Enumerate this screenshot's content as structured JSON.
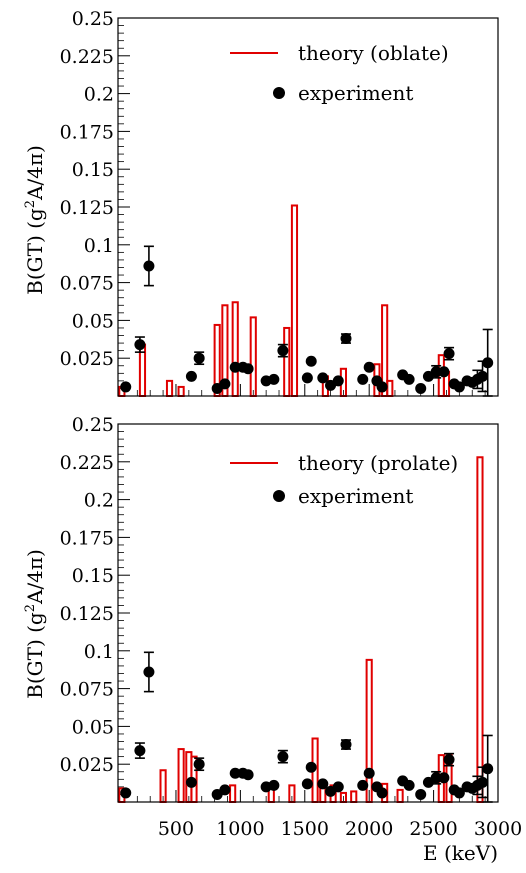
{
  "chart_data": [
    {
      "type": "bar",
      "xlabel": "",
      "ylabel": "B(GT) (g²A/4π)",
      "ylabel_main": "B(GT) (g",
      "ylabel_sup": "2",
      "ylabel_tail": "A/4π)",
      "xlim": [
        50,
        3000
      ],
      "ylim": [
        0,
        0.25
      ],
      "yticks": [
        "0.025",
        "0.05",
        "0.075",
        "0.1",
        "0.125",
        "0.15",
        "0.175",
        "0.2",
        "0.225",
        "0.25"
      ],
      "legend": {
        "position": "top-right",
        "entries": [
          "theory (oblate)",
          "experiment"
        ]
      },
      "colors": {
        "theory": "#e00000",
        "experiment": "#000000"
      },
      "series": [
        {
          "name": "theory (oblate)",
          "bin_width": 40,
          "x": [
            60,
            220,
            430,
            520,
            800,
            860,
            940,
            1080,
            1340,
            1400,
            1640,
            1780,
            2040,
            2100,
            2140,
            2540,
            2580
          ],
          "values": [
            0.006,
            0.034,
            0.01,
            0.006,
            0.047,
            0.06,
            0.062,
            0.052,
            0.045,
            0.126,
            0.013,
            0.018,
            0.021,
            0.06,
            0.01,
            0.027,
            0.016
          ]
        },
        {
          "name": "experiment",
          "x": [
            110,
            220,
            290,
            620,
            680,
            820,
            880,
            960,
            1020,
            1060,
            1200,
            1260,
            1330,
            1520,
            1550,
            1640,
            1700,
            1760,
            1820,
            1950,
            2000,
            2060,
            2100,
            2260,
            2310,
            2400,
            2460,
            2520,
            2580,
            2620,
            2660,
            2700,
            2760,
            2800,
            2840,
            2880,
            2920
          ],
          "values": [
            0.006,
            0.034,
            0.086,
            0.013,
            0.025,
            0.005,
            0.008,
            0.019,
            0.019,
            0.018,
            0.01,
            0.011,
            0.03,
            0.012,
            0.023,
            0.012,
            0.007,
            0.01,
            0.038,
            0.011,
            0.019,
            0.01,
            0.006,
            0.014,
            0.011,
            0.005,
            0.013,
            0.016,
            0.016,
            0.028,
            0.008,
            0.006,
            0.01,
            0.009,
            0.011,
            0.013,
            0.022
          ],
          "errors": [
            0,
            0.005,
            0.013,
            0,
            0.004,
            0,
            0,
            0,
            0,
            0,
            0,
            0,
            0.004,
            0,
            0,
            0,
            0,
            0,
            0.003,
            0,
            0,
            0,
            0,
            0,
            0,
            0,
            0,
            0.004,
            0,
            0.004,
            0,
            0,
            0,
            0,
            0.006,
            0.01,
            0.022
          ]
        }
      ]
    },
    {
      "type": "bar",
      "xlabel": "E (keV)",
      "ylabel": "B(GT) (g²A/4π)",
      "ylabel_main": "B(GT) (g",
      "ylabel_sup": "2",
      "ylabel_tail": "A/4π)",
      "xlim": [
        50,
        3000
      ],
      "ylim": [
        0,
        0.25
      ],
      "xticks": [
        "500",
        "1000",
        "1500",
        "2000",
        "2500",
        "3000"
      ],
      "xtick_values": [
        500,
        1000,
        1500,
        2000,
        2500,
        3000
      ],
      "yticks": [
        "0.025",
        "0.05",
        "0.075",
        "0.1",
        "0.125",
        "0.15",
        "0.175",
        "0.2",
        "0.225",
        "0.25"
      ],
      "legend": {
        "position": "top-right",
        "entries": [
          "theory (prolate)",
          "experiment"
        ]
      },
      "colors": {
        "theory": "#e00000",
        "experiment": "#000000"
      },
      "series": [
        {
          "name": "theory (prolate)",
          "bin_width": 40,
          "x": [
            60,
            380,
            520,
            580,
            620,
            920,
            1220,
            1380,
            1560,
            1620,
            1700,
            1780,
            1860,
            1980,
            2100,
            2220,
            2540,
            2600,
            2840
          ],
          "values": [
            0.009,
            0.021,
            0.035,
            0.033,
            0.03,
            0.011,
            0.01,
            0.011,
            0.042,
            0.013,
            0.011,
            0.006,
            0.007,
            0.094,
            0.012,
            0.008,
            0.031,
            0.031,
            0.228
          ]
        },
        {
          "name": "experiment",
          "x": [
            110,
            220,
            290,
            620,
            680,
            820,
            880,
            960,
            1020,
            1060,
            1200,
            1260,
            1330,
            1520,
            1550,
            1640,
            1700,
            1760,
            1820,
            1950,
            2000,
            2060,
            2100,
            2260,
            2310,
            2400,
            2460,
            2520,
            2580,
            2620,
            2660,
            2700,
            2760,
            2800,
            2840,
            2880,
            2920
          ],
          "values": [
            0.006,
            0.034,
            0.086,
            0.013,
            0.025,
            0.005,
            0.008,
            0.019,
            0.019,
            0.018,
            0.01,
            0.011,
            0.03,
            0.012,
            0.023,
            0.012,
            0.007,
            0.01,
            0.038,
            0.011,
            0.019,
            0.01,
            0.006,
            0.014,
            0.011,
            0.005,
            0.013,
            0.016,
            0.016,
            0.028,
            0.008,
            0.006,
            0.01,
            0.009,
            0.011,
            0.013,
            0.022
          ],
          "errors": [
            0,
            0.005,
            0.013,
            0,
            0.004,
            0,
            0,
            0,
            0,
            0,
            0,
            0,
            0.004,
            0,
            0,
            0,
            0,
            0,
            0.003,
            0,
            0,
            0,
            0,
            0,
            0,
            0,
            0,
            0.004,
            0,
            0.004,
            0,
            0,
            0,
            0,
            0.006,
            0.01,
            0.022
          ]
        }
      ]
    }
  ]
}
